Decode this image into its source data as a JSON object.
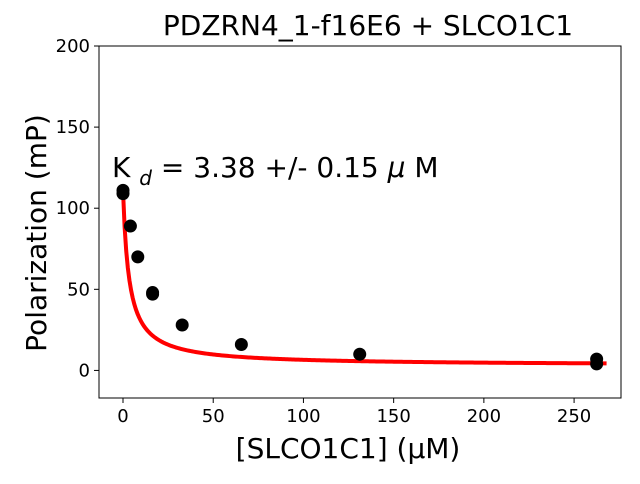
{
  "chart_data": {
    "type": "scatter",
    "title": "PDZRN4_1-f16E6 + SLCO1C1",
    "xlabel": "[SLCO1C1] (μM)",
    "ylabel": "Polarization (mP)",
    "annotation": {
      "prefix": "K",
      "subscript": "d",
      "rest": " = 3.38 +/- 0.15 ",
      "mu": "μ",
      "unit": "M"
    },
    "xlim": [
      -13.3,
      276.0
    ],
    "ylim": [
      -17,
      200
    ],
    "xticks": [
      0,
      50,
      100,
      150,
      200,
      250
    ],
    "yticks": [
      0,
      50,
      100,
      150,
      200
    ],
    "grid": false,
    "legend": "none",
    "points": [
      {
        "x": 0,
        "y": 111
      },
      {
        "x": 0,
        "y": 109
      },
      {
        "x": 4.1,
        "y": 89
      },
      {
        "x": 8.2,
        "y": 70
      },
      {
        "x": 16.4,
        "y": 47
      },
      {
        "x": 16.4,
        "y": 48
      },
      {
        "x": 32.8,
        "y": 28
      },
      {
        "x": 65.6,
        "y": 16
      },
      {
        "x": 131.2,
        "y": 10
      },
      {
        "x": 262.5,
        "y": 7
      },
      {
        "x": 262.5,
        "y": 4
      }
    ],
    "fit": {
      "model": "competitive-binding",
      "kd": 3.38,
      "top": 111,
      "bottom": 3,
      "x_range": [
        0,
        268
      ]
    },
    "colors": {
      "points": "#000000",
      "fit": "#ff0000",
      "axes": "#000000"
    }
  }
}
